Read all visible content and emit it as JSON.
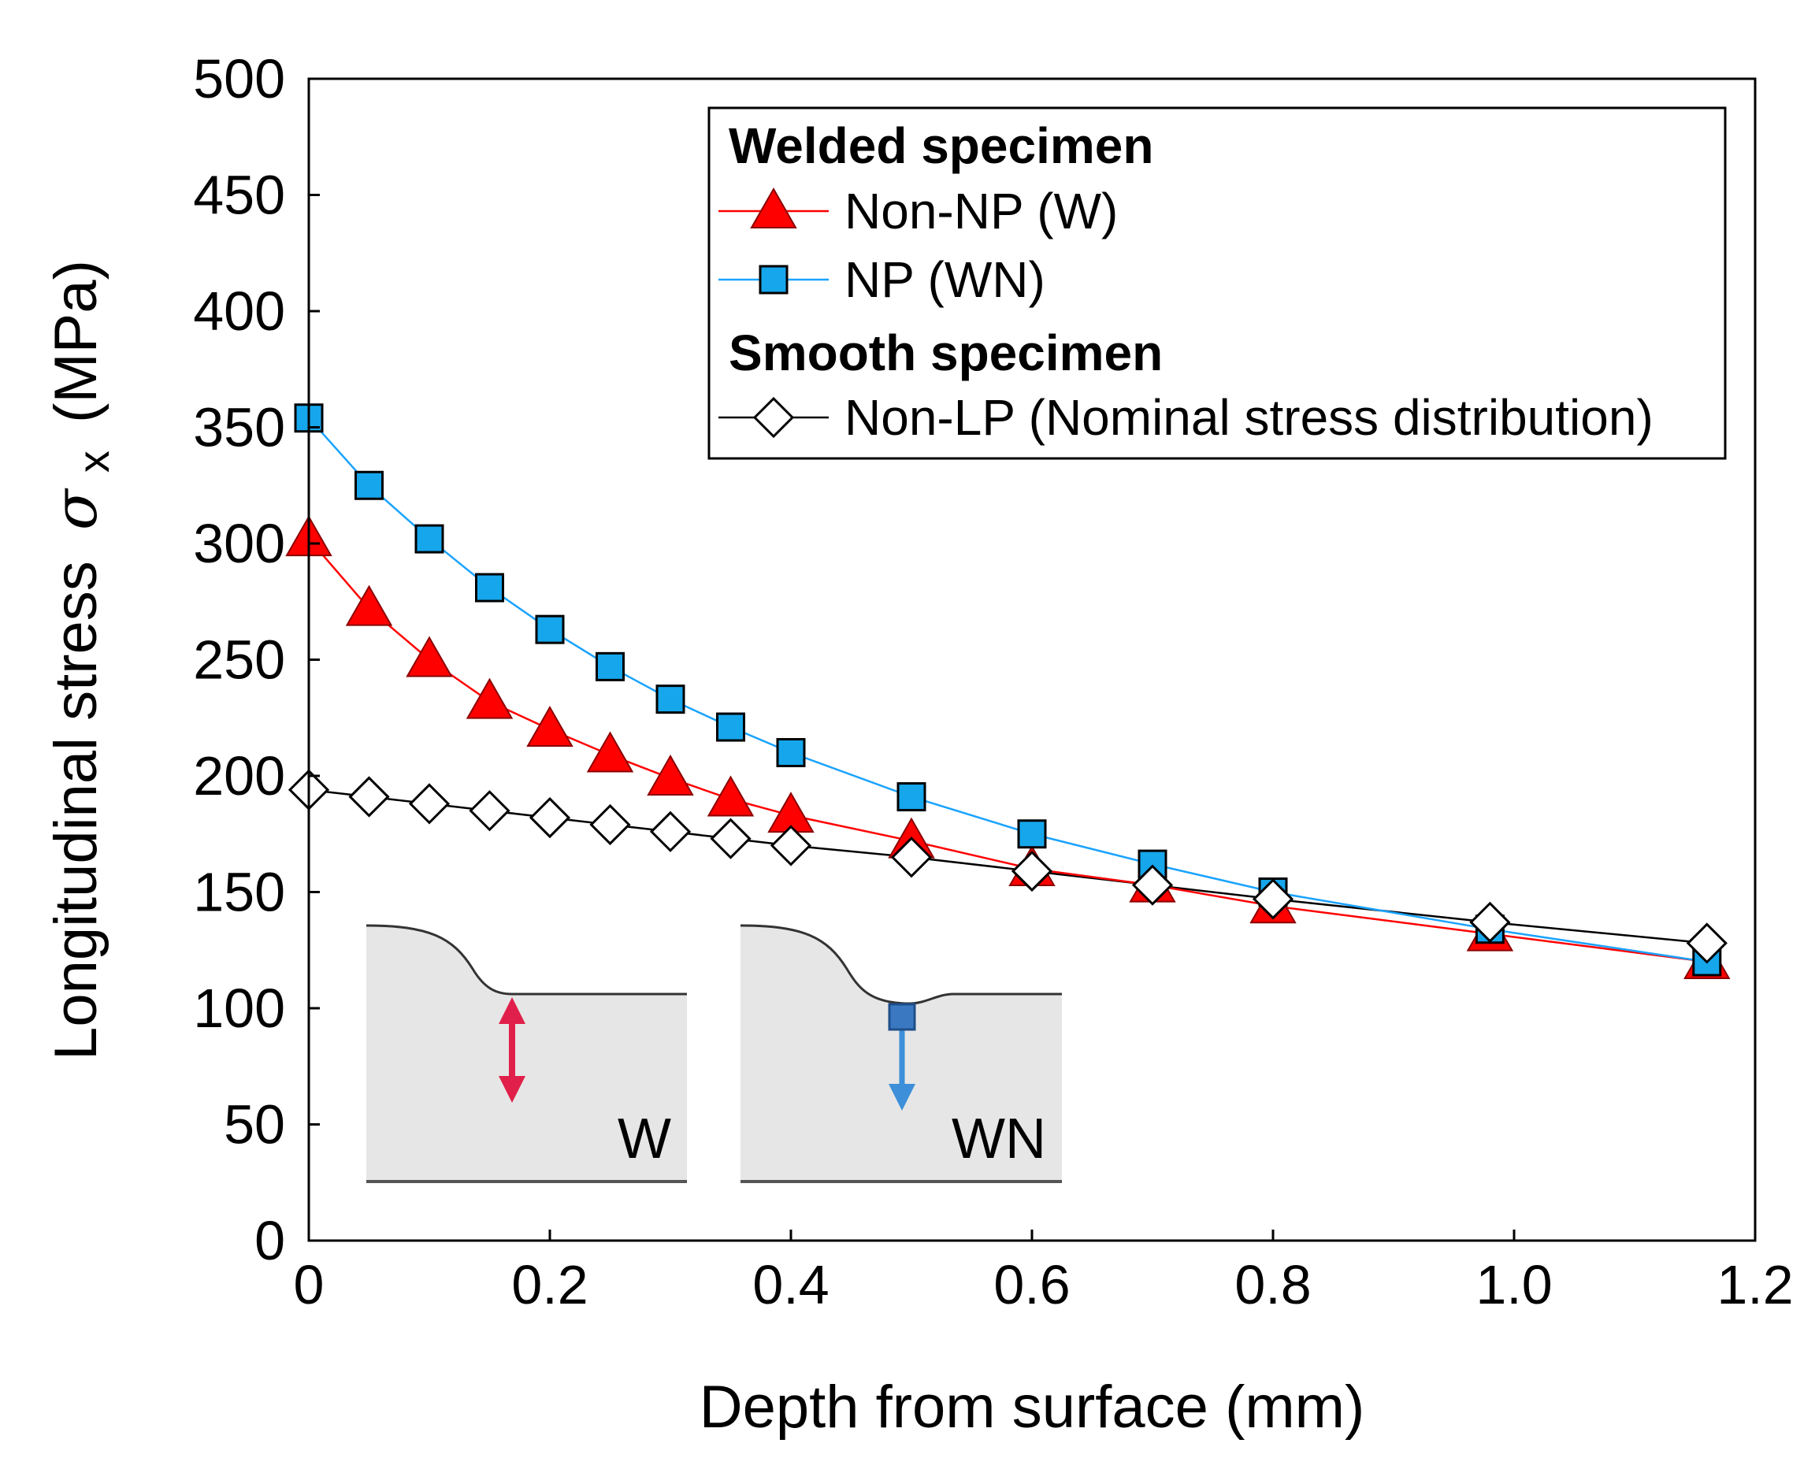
{
  "chart_data": {
    "type": "line",
    "title": "",
    "xlabel": "Depth from surface (mm)",
    "ylabel": "Longitudinal stress",
    "ylabel_symbol": "σ",
    "ylabel_subscript": "x",
    "ylabel_unit": "(MPa)",
    "xlim": [
      0,
      1.2
    ],
    "ylim": [
      0,
      500
    ],
    "xticks": [
      0,
      0.2,
      0.4,
      0.6,
      0.8,
      1.0,
      1.2
    ],
    "xtick_labels": [
      "0",
      "0.2",
      "0.4",
      "0.6",
      "0.8",
      "1.0",
      "1.2"
    ],
    "yticks": [
      0,
      50,
      100,
      150,
      200,
      250,
      300,
      350,
      400,
      450,
      500
    ],
    "ytick_labels": [
      "0",
      "50",
      "100",
      "150",
      "200",
      "250",
      "300",
      "350",
      "400",
      "450",
      "500"
    ],
    "grid": false,
    "legend_position": "top-right",
    "legend": {
      "group1_title": "Welded specimen",
      "group2_title": "Smooth specimen"
    },
    "series": [
      {
        "name": "Non-NP (W)",
        "group": "Welded specimen",
        "marker": "triangle",
        "line_color": "#ff0000",
        "marker_fill": "#ff0000",
        "x": [
          0,
          0.05,
          0.1,
          0.15,
          0.2,
          0.25,
          0.3,
          0.35,
          0.4,
          0.5,
          0.6,
          0.7,
          0.8,
          0.98,
          1.16
        ],
        "y": [
          302,
          272,
          250,
          232,
          220,
          209,
          199,
          190,
          183,
          172,
          160,
          153,
          144,
          132,
          120
        ]
      },
      {
        "name": "NP (WN)",
        "group": "Welded specimen",
        "marker": "square",
        "line_color": "#1aa3ff",
        "marker_fill": "#16a6ec",
        "x": [
          0,
          0.05,
          0.1,
          0.15,
          0.2,
          0.25,
          0.3,
          0.35,
          0.4,
          0.5,
          0.6,
          0.7,
          0.8,
          0.98,
          1.16
        ],
        "y": [
          354,
          325,
          302,
          281,
          263,
          247,
          233,
          221,
          210,
          191,
          175,
          162,
          150,
          134,
          120
        ]
      },
      {
        "name": "Non-LP (Nominal stress distribution)",
        "group": "Smooth specimen",
        "marker": "diamond",
        "line_color": "#000000",
        "marker_fill": "#ffffff",
        "x": [
          0,
          0.05,
          0.1,
          0.15,
          0.2,
          0.25,
          0.3,
          0.35,
          0.4,
          0.5,
          0.6,
          0.7,
          0.8,
          0.98,
          1.16
        ],
        "y": [
          194,
          191,
          188,
          185,
          182,
          179,
          176,
          173,
          170,
          165,
          159,
          153,
          147,
          137,
          128
        ]
      }
    ],
    "insets": [
      {
        "label": "W",
        "arrow": "double",
        "arrow_color": "#e0204a"
      },
      {
        "label": "WN",
        "arrow": "down",
        "arrow_color": "#3c8fd8",
        "marker_fill": "#3a78c2"
      }
    ]
  }
}
